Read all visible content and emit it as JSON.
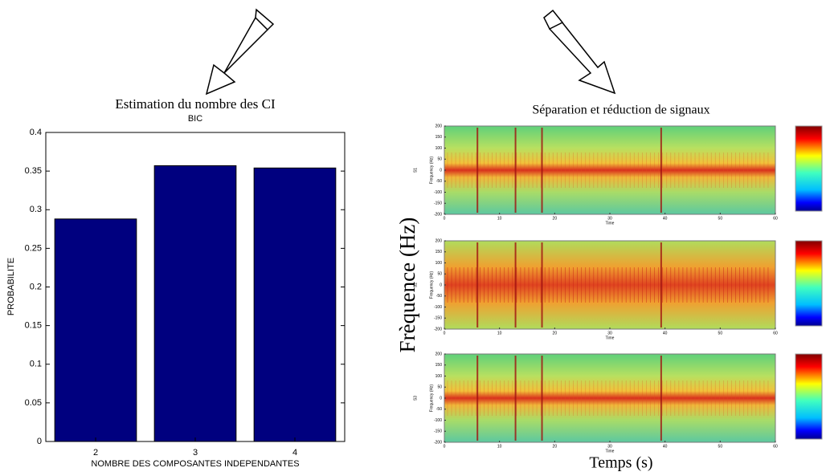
{
  "chart_data": [
    {
      "type": "bar",
      "title": "Estimation du nombre des CI",
      "subtitle": "BIC",
      "x_label": "NOMBRE DES COMPOSANTES INDEPENDANTES",
      "y_label": "PROBABILITE",
      "categories": [
        "2",
        "3",
        "4"
      ],
      "values": [
        0.288,
        0.357,
        0.354
      ],
      "color": "#00007f",
      "ylim": [
        0,
        0.4
      ],
      "yticks": [
        0,
        0.05,
        0.1,
        0.15,
        0.2,
        0.25,
        0.3,
        0.35,
        0.4
      ]
    },
    {
      "type": "spectrogram",
      "title": "Séparation et réduction de signaux",
      "y_label": "Frèquence (Hz)",
      "x_label": "Temps (s)",
      "panel_x_label": "Time",
      "panel_y_label": "Frequency (Hz)",
      "panel_names": [
        "S1",
        "S2",
        "S3"
      ],
      "xlim": [
        0,
        60
      ],
      "xticks": [
        0,
        10,
        20,
        30,
        40,
        50,
        60
      ],
      "ylim": [
        -200,
        200
      ],
      "yticks": [
        200,
        150,
        100,
        50,
        0,
        -50,
        -100,
        -150,
        -200
      ]
    }
  ]
}
